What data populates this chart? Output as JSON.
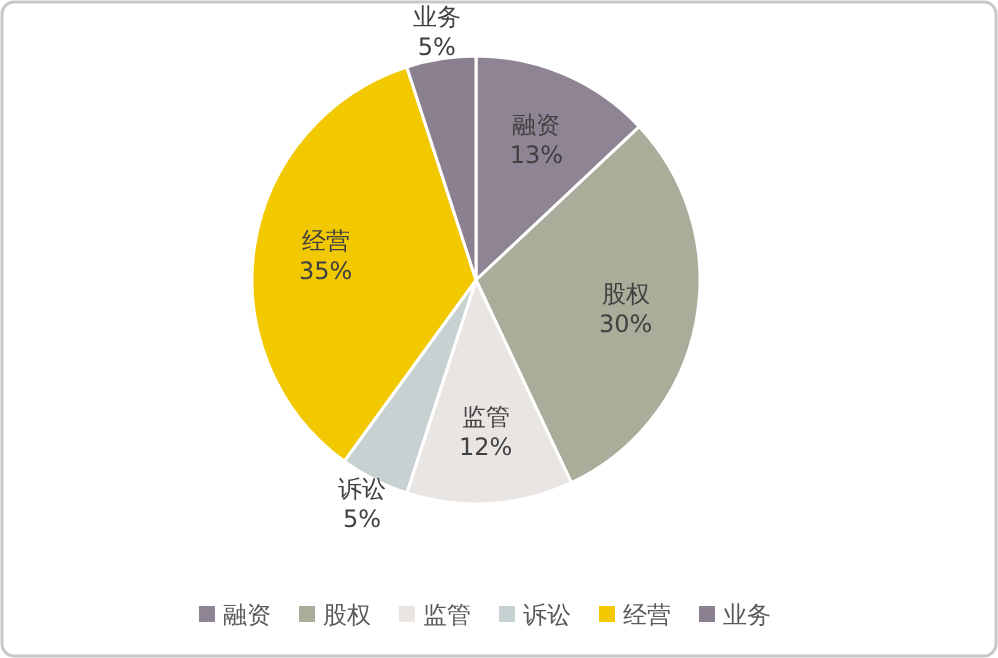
{
  "chart_data": {
    "type": "pie",
    "categories": [
      "融资",
      "股权",
      "监管",
      "诉讼",
      "经营",
      "业务"
    ],
    "values": [
      13,
      30,
      12,
      5,
      35,
      5
    ],
    "value_labels": [
      "13%",
      "30%",
      "12%",
      "5%",
      "35%",
      "5%"
    ],
    "colors": [
      "#8e8494",
      "#a9ad9a",
      "#e9e5e3",
      "#c8d1d2",
      "#f2c800",
      "#8a8090"
    ],
    "legend": "bottom"
  }
}
